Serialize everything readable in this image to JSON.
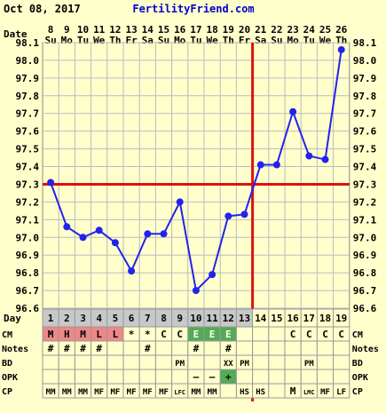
{
  "header": {
    "date_text": "Oct 08, 2017",
    "site_text": "FertilityFriend.com",
    "date_row_label": "Date"
  },
  "colors": {
    "background": "#ffffcc",
    "grid": "#bbbbbb",
    "line": "#2222ee",
    "coverline": "#dd1111",
    "site": "#0000cc",
    "cm_red": "#ee8888",
    "cm_green": "#55aa55",
    "day_gray": "#c8c8c8"
  },
  "chart_data": {
    "type": "line",
    "title": "",
    "xlabel": "Day",
    "ylabel": "",
    "ylim": [
      96.6,
      98.1
    ],
    "yticks": [
      "98.1",
      "98.0",
      "97.9",
      "97.8",
      "97.7",
      "97.6",
      "97.5",
      "97.4",
      "97.3",
      "97.2",
      "97.1",
      "97.0",
      "96.9",
      "96.8",
      "96.7",
      "96.6"
    ],
    "dates": [
      "8",
      "9",
      "10",
      "11",
      "12",
      "13",
      "14",
      "15",
      "16",
      "17",
      "18",
      "19",
      "20",
      "21",
      "22",
      "23",
      "24",
      "25",
      "26"
    ],
    "weekdays": [
      "Su",
      "Mo",
      "Tu",
      "We",
      "Th",
      "Fr",
      "Sa",
      "Su",
      "Mo",
      "Tu",
      "We",
      "Th",
      "Fr",
      "Sa",
      "Su",
      "Mo",
      "Tu",
      "We",
      "Th"
    ],
    "days": [
      "1",
      "2",
      "3",
      "4",
      "5",
      "6",
      "7",
      "8",
      "9",
      "10",
      "11",
      "12",
      "13",
      "14",
      "15",
      "16",
      "17",
      "18",
      "19"
    ],
    "values": [
      97.31,
      97.06,
      97.0,
      97.04,
      96.97,
      96.81,
      97.02,
      97.02,
      97.2,
      96.7,
      96.79,
      97.12,
      97.13,
      97.41,
      97.41,
      97.71,
      97.46,
      97.44,
      98.06
    ],
    "coverline": 97.3,
    "ovulation_day": 13,
    "grid": true
  },
  "rows": {
    "cm": {
      "label": "CM",
      "cells": [
        "M",
        "H",
        "M",
        "L",
        "L",
        "*",
        "*",
        "C",
        "C",
        "E",
        "E",
        "E",
        "",
        "",
        "",
        "C",
        "C",
        "C",
        "C"
      ],
      "colors": [
        "red",
        "red",
        "red",
        "red",
        "red",
        "",
        "",
        "",
        "",
        "green",
        "green",
        "green",
        "",
        "",
        "",
        "",
        "",
        "",
        ""
      ]
    },
    "notes": {
      "label": "Notes",
      "cells": [
        "#",
        "#",
        "#",
        "#",
        "",
        "",
        "#",
        "",
        "",
        "#",
        "",
        "#",
        "",
        "",
        "",
        "",
        "",
        "",
        ""
      ]
    },
    "bd": {
      "label": "BD",
      "cells": [
        "",
        "",
        "",
        "",
        "",
        "",
        "",
        "",
        "PM",
        "",
        "",
        "XX",
        "PM",
        "",
        "",
        "",
        "PM",
        "",
        ""
      ]
    },
    "opk": {
      "label": "OPK",
      "cells": [
        "",
        "",
        "",
        "",
        "",
        "",
        "",
        "",
        "",
        "–",
        "–",
        "+",
        "",
        "",
        "",
        "",
        "",
        "",
        ""
      ],
      "colors": [
        "",
        "",
        "",
        "",
        "",
        "",
        "",
        "",
        "",
        "",
        "",
        "green",
        "",
        "",
        "",
        "",
        "",
        "",
        ""
      ]
    },
    "cp": {
      "label": "CP",
      "cells": [
        "MM",
        "MM",
        "MM",
        "MF",
        "MF",
        "MF",
        "MF",
        "MF",
        "LFC",
        "MM",
        "MM",
        "",
        "HS",
        "HS",
        "",
        "M",
        "LMC",
        "MF",
        "LF"
      ]
    }
  }
}
